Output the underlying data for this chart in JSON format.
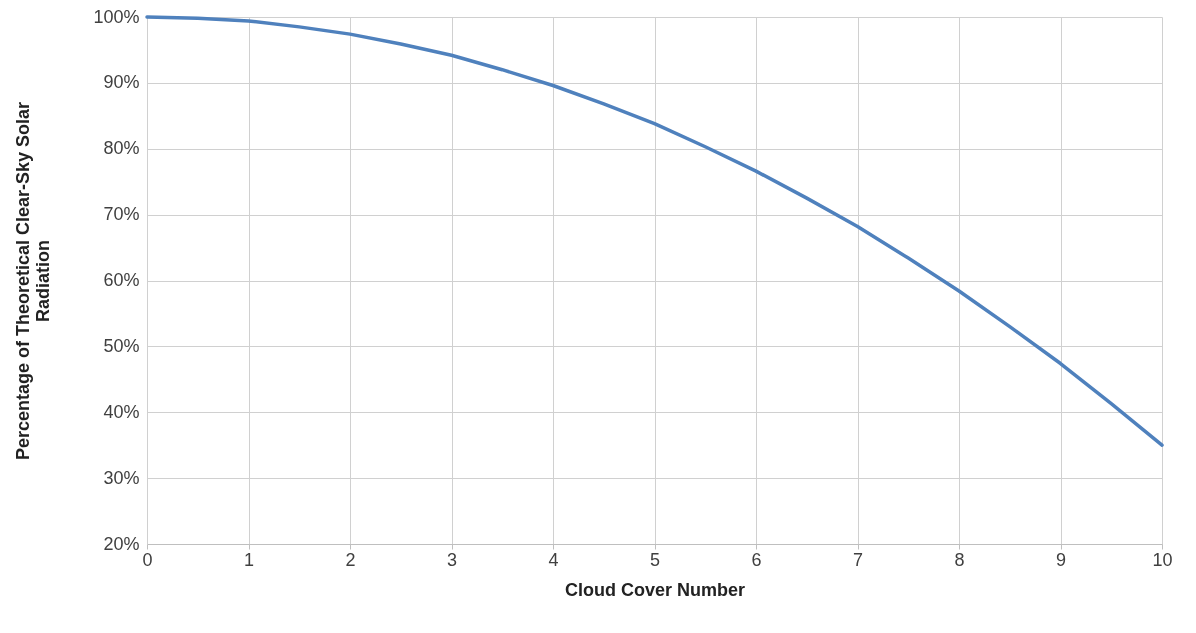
{
  "chart_data": {
    "type": "line",
    "xlabel": "Cloud Cover Number",
    "ylabel": "Percentage of Theoretical Clear-Sky Solar Radiation",
    "x": [
      0,
      0.5,
      1,
      1.5,
      2,
      2.5,
      3,
      3.5,
      4,
      4.5,
      5,
      5.5,
      6,
      6.5,
      7,
      7.5,
      8,
      8.5,
      9,
      9.5,
      10
    ],
    "series": [
      {
        "color": "#4f81bd",
        "values": [
          100,
          99.8,
          99.4,
          98.5,
          97.4,
          95.9,
          94.2,
          92.0,
          89.6,
          86.8,
          83.8,
          80.3,
          76.6,
          72.5,
          68.2,
          63.4,
          58.4,
          53.0,
          47.4,
          41.3,
          35.0
        ]
      }
    ],
    "xlim": [
      0,
      10
    ],
    "xticks": [
      0,
      1,
      2,
      3,
      4,
      5,
      6,
      7,
      8,
      9,
      10
    ],
    "ylim": [
      20,
      100
    ],
    "yticks": [
      {
        "value": 20,
        "label": "20%"
      },
      {
        "value": 30,
        "label": "30%"
      },
      {
        "value": 40,
        "label": "40%"
      },
      {
        "value": 50,
        "label": "50%"
      },
      {
        "value": 60,
        "label": "60%"
      },
      {
        "value": 70,
        "label": "70%"
      },
      {
        "value": 80,
        "label": "80%"
      },
      {
        "value": 90,
        "label": "90%"
      },
      {
        "value": 100,
        "label": "100%"
      }
    ],
    "grid": true,
    "marker": "none",
    "line_style": "solid"
  }
}
